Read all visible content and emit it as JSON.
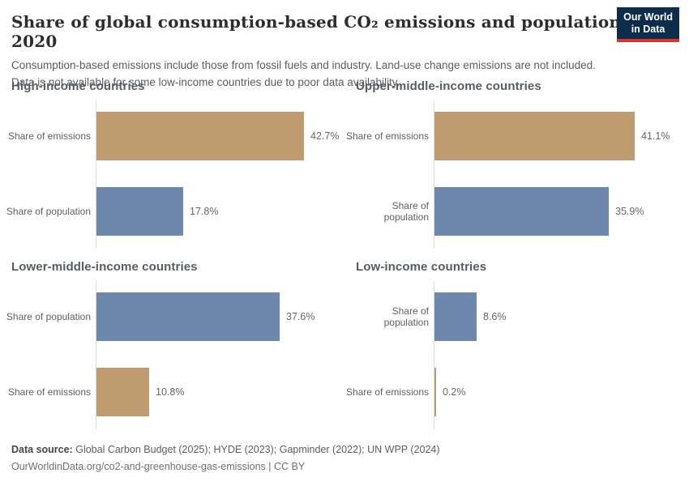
{
  "header": {
    "title": "Share of global consumption-based CO₂ emissions and population, 2020",
    "subtitle": "Consumption-based emissions include those from fossil fuels and industry. Land-use change emissions are not included. Data is not available for some low-income countries due to poor data availability.",
    "logo": {
      "line1": "Our World",
      "line2": "in Data",
      "bg_color": "#0d2d4c",
      "stripe_color": "#dd3424"
    }
  },
  "chart_data": {
    "type": "bar",
    "orientation": "horizontal",
    "unit": "%",
    "xlim": [
      0,
      45
    ],
    "grid": false,
    "legend": false,
    "series_colors": {
      "emissions": "#bf9b70",
      "population": "#6e87ac"
    },
    "panels": [
      {
        "title": "High-income countries",
        "bars": [
          {
            "label": "Share of emissions",
            "series": "emissions",
            "value": 42.7,
            "display": "42.7%"
          },
          {
            "label": "Share of population",
            "series": "population",
            "value": 17.8,
            "display": "17.8%"
          }
        ]
      },
      {
        "title": "Upper-middle-income countries",
        "bars": [
          {
            "label": "Share of emissions",
            "series": "emissions",
            "value": 41.1,
            "display": "41.1%"
          },
          {
            "label": "Share of population",
            "series": "population",
            "value": 35.9,
            "display": "35.9%"
          }
        ]
      },
      {
        "title": "Lower-middle-income countries",
        "bars": [
          {
            "label": "Share of population",
            "series": "population",
            "value": 37.6,
            "display": "37.6%"
          },
          {
            "label": "Share of emissions",
            "series": "emissions",
            "value": 10.8,
            "display": "10.8%"
          }
        ]
      },
      {
        "title": "Low-income countries",
        "bars": [
          {
            "label": "Share of population",
            "series": "population",
            "value": 8.6,
            "display": "8.6%"
          },
          {
            "label": "Share of emissions",
            "series": "emissions",
            "value": 0.2,
            "display": "0.2%"
          }
        ]
      }
    ]
  },
  "footer": {
    "source_label": "Data source:",
    "source_text": "Global Carbon Budget (2025); HYDE (2023); Gapminder (2022); UN WPP (2024)",
    "citation": "OurWorldinData.org/co2-and-greenhouse-gas-emissions | CC BY"
  }
}
